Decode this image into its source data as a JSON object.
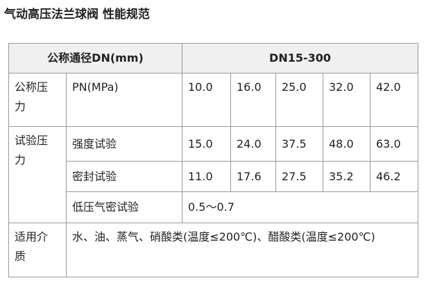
{
  "title": "气动高压法兰球阀 性能规范",
  "table": {
    "header": [
      "公称通径DN(mm)",
      "DN15-300"
    ],
    "rows": [
      {
        "group": "公称压力",
        "label": "PN(MPa)",
        "values": [
          "10.0",
          "16.0",
          "25.0",
          "32.0",
          "42.0"
        ]
      },
      {
        "group": "试验压力",
        "label": "强度试验",
        "values": [
          "15.0",
          "24.0",
          "37.5",
          "48.0",
          "63.0"
        ]
      },
      {
        "label": "密封试验",
        "values": [
          "11.0",
          "17.6",
          "27.5",
          "35.2",
          "46.2"
        ]
      },
      {
        "label": "低压气密试验",
        "value": "0.5～0.7"
      },
      {
        "group": "适用介质",
        "value": "水、油、蒸气、硝酸类(温度≤200℃)、醋酸类(温度≤200℃)"
      }
    ]
  }
}
